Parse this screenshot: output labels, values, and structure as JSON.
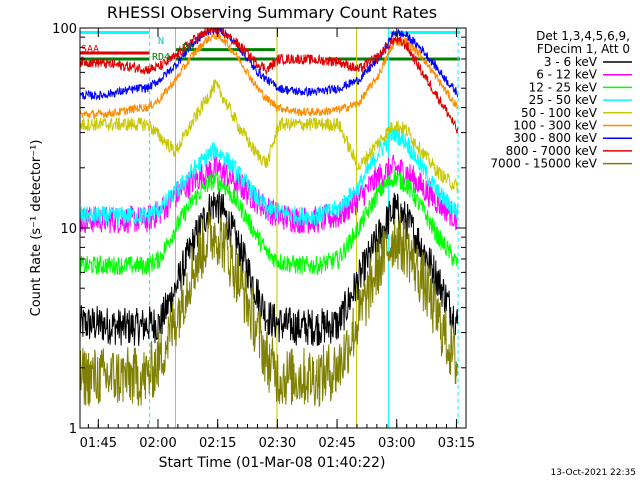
{
  "chart_data": {
    "type": "line",
    "title": "RHESSI Observing Summary Count Rates",
    "xlabel": "Start Time (01-Mar-08 01:40:22)",
    "ylabel": "Count Rate (s⁻¹ detector⁻¹)",
    "y_scale": "log",
    "ylim": [
      1,
      100
    ],
    "y_ticks": [
      {
        "value": 1,
        "label": "1"
      },
      {
        "value": 10,
        "label": "10"
      },
      {
        "value": 100,
        "label": "100"
      }
    ],
    "x_unit": "minutes after 01:40:22",
    "xlim": [
      0,
      97
    ],
    "x_ticks": [
      {
        "value": 4.6,
        "label": "01:45"
      },
      {
        "value": 19.6,
        "label": "02:00"
      },
      {
        "value": 34.6,
        "label": "02:15"
      },
      {
        "value": 49.6,
        "label": "02:30"
      },
      {
        "value": 64.6,
        "label": "02:45"
      },
      {
        "value": 79.6,
        "label": "03:00"
      },
      {
        "value": 94.6,
        "label": "03:15"
      }
    ],
    "legend_header": [
      "Det 1,3,4,5,6,9,",
      "FDecim 1, Att 0"
    ],
    "legend_placement": "right",
    "timestamp": "13-Oct-2021 22:35",
    "annotations": [
      {
        "text": "N",
        "color": "#00c8c8"
      },
      {
        "text": "RD",
        "color": "#008000"
      },
      {
        "text": "SAA",
        "color": "#e00000"
      },
      {
        "text": "RD4",
        "color": "#008000"
      }
    ],
    "flags": [
      {
        "name": "N",
        "color": "#00ffff",
        "y": 95,
        "segments": [
          [
            0,
            17.5
          ],
          [
            78,
            95.5
          ]
        ]
      },
      {
        "name": "RD",
        "color": "#008000",
        "y": 78,
        "segments": [
          [
            24,
            49
          ]
        ]
      },
      {
        "name": "SAA",
        "color": "#e00000",
        "y": 75,
        "segments": [
          [
            0,
            17.5
          ]
        ]
      },
      {
        "name": "RD4",
        "color": "#008000",
        "y": 70,
        "segments": [
          [
            0,
            17.5
          ],
          [
            24,
            49
          ],
          [
            62,
            95.5
          ]
        ]
      }
    ],
    "gap_lines": [
      {
        "x": 0,
        "color": "#00ffff",
        "style": "solid"
      },
      {
        "x": 17.5,
        "color": "#00ffff",
        "style": "dashed"
      },
      {
        "x": 24,
        "color": "#c8c800",
        "style": "solid"
      },
      {
        "x": 49.5,
        "color": "#c8c800",
        "style": "solid"
      },
      {
        "x": 69.5,
        "color": "#c8c800",
        "style": "solid"
      },
      {
        "x": 77.5,
        "color": "#00ffff",
        "style": "solid"
      },
      {
        "x": 95,
        "color": "#00ffff",
        "style": "dashed"
      }
    ],
    "series": [
      {
        "name": "3 - 6 keV",
        "color": "#000000",
        "values": [
          [
            0,
            3.3
          ],
          [
            5,
            3.3
          ],
          [
            10,
            3.2
          ],
          [
            15,
            3.2
          ],
          [
            17,
            3.3
          ],
          [
            20,
            3.3
          ],
          [
            24,
            5
          ],
          [
            28,
            8
          ],
          [
            32,
            12
          ],
          [
            34,
            13.5
          ],
          [
            36,
            12
          ],
          [
            40,
            8
          ],
          [
            44,
            5
          ],
          [
            47,
            3.6
          ],
          [
            50,
            3.3
          ],
          [
            55,
            3.2
          ],
          [
            60,
            3.2
          ],
          [
            65,
            3.3
          ],
          [
            70,
            5.5
          ],
          [
            75,
            9
          ],
          [
            79,
            12.5
          ],
          [
            82,
            11
          ],
          [
            86,
            8
          ],
          [
            90,
            5.5
          ],
          [
            93,
            4
          ],
          [
            95,
            3.3
          ]
        ]
      },
      {
        "name": "6 - 12 keV",
        "color": "#ff00ff",
        "values": [
          [
            0,
            11
          ],
          [
            5,
            11
          ],
          [
            10,
            11
          ],
          [
            15,
            11
          ],
          [
            17,
            11
          ],
          [
            20,
            12
          ],
          [
            24,
            14.5
          ],
          [
            28,
            17
          ],
          [
            32,
            19
          ],
          [
            34,
            20
          ],
          [
            36,
            19
          ],
          [
            40,
            16.5
          ],
          [
            44,
            14
          ],
          [
            47,
            12.5
          ],
          [
            50,
            11.5
          ],
          [
            55,
            11
          ],
          [
            60,
            11
          ],
          [
            65,
            11.5
          ],
          [
            70,
            14
          ],
          [
            75,
            18
          ],
          [
            79,
            20
          ],
          [
            82,
            19
          ],
          [
            86,
            16
          ],
          [
            90,
            13.5
          ],
          [
            93,
            12
          ],
          [
            95,
            11
          ]
        ]
      },
      {
        "name": "12 - 25 keV",
        "color": "#00ff00",
        "values": [
          [
            0,
            6.5
          ],
          [
            5,
            6.5
          ],
          [
            10,
            6.5
          ],
          [
            15,
            6.5
          ],
          [
            17,
            6.5
          ],
          [
            20,
            7
          ],
          [
            24,
            10
          ],
          [
            28,
            13.5
          ],
          [
            32,
            16.5
          ],
          [
            34,
            17.5
          ],
          [
            36,
            16.5
          ],
          [
            40,
            13
          ],
          [
            44,
            9.5
          ],
          [
            47,
            7.5
          ],
          [
            50,
            6.8
          ],
          [
            55,
            6.5
          ],
          [
            60,
            6.5
          ],
          [
            65,
            7
          ],
          [
            70,
            10
          ],
          [
            75,
            15
          ],
          [
            79,
            18
          ],
          [
            82,
            16.5
          ],
          [
            86,
            12.5
          ],
          [
            90,
            9
          ],
          [
            93,
            7.5
          ],
          [
            95,
            6.5
          ]
        ]
      },
      {
        "name": "25 - 50 keV",
        "color": "#00ffff",
        "values": [
          [
            0,
            11.5
          ],
          [
            5,
            11.5
          ],
          [
            10,
            11.5
          ],
          [
            15,
            11.5
          ],
          [
            17,
            11.5
          ],
          [
            20,
            12.5
          ],
          [
            24,
            15
          ],
          [
            28,
            19
          ],
          [
            32,
            23
          ],
          [
            34,
            24.5
          ],
          [
            36,
            23
          ],
          [
            40,
            18.5
          ],
          [
            44,
            14.5
          ],
          [
            47,
            12.5
          ],
          [
            50,
            12
          ],
          [
            55,
            11.5
          ],
          [
            60,
            11.5
          ],
          [
            65,
            12.5
          ],
          [
            70,
            16
          ],
          [
            75,
            24
          ],
          [
            79,
            30
          ],
          [
            82,
            27
          ],
          [
            86,
            20
          ],
          [
            90,
            15
          ],
          [
            93,
            13
          ],
          [
            95,
            12
          ]
        ]
      },
      {
        "name": "50 - 100 keV",
        "color": "#c8c800",
        "values": [
          [
            0,
            33
          ],
          [
            5,
            33
          ],
          [
            10,
            33
          ],
          [
            15,
            33
          ],
          [
            17,
            33
          ],
          [
            24,
            24
          ],
          [
            28,
            33
          ],
          [
            32,
            45
          ],
          [
            34,
            52
          ],
          [
            36,
            45
          ],
          [
            40,
            32
          ],
          [
            44,
            24
          ],
          [
            47,
            21
          ],
          [
            50,
            33
          ],
          [
            55,
            33
          ],
          [
            60,
            33
          ],
          [
            65,
            33
          ],
          [
            70,
            20
          ],
          [
            75,
            27
          ],
          [
            79,
            33
          ],
          [
            82,
            31
          ],
          [
            86,
            24
          ],
          [
            90,
            19
          ],
          [
            93,
            17
          ],
          [
            95,
            16
          ]
        ]
      },
      {
        "name": "100 - 300 keV",
        "color": "#ff8c00",
        "values": [
          [
            0,
            37
          ],
          [
            5,
            37
          ],
          [
            10,
            38
          ],
          [
            15,
            40
          ],
          [
            17,
            40
          ],
          [
            20,
            44
          ],
          [
            24,
            55
          ],
          [
            28,
            72
          ],
          [
            32,
            88
          ],
          [
            34,
            92
          ],
          [
            36,
            88
          ],
          [
            40,
            70
          ],
          [
            44,
            52
          ],
          [
            47,
            44
          ],
          [
            50,
            40
          ],
          [
            55,
            38
          ],
          [
            60,
            38
          ],
          [
            65,
            39
          ],
          [
            70,
            42
          ],
          [
            75,
            58
          ],
          [
            79,
            85
          ],
          [
            82,
            86
          ],
          [
            86,
            72
          ],
          [
            90,
            55
          ],
          [
            93,
            45
          ],
          [
            95,
            40
          ]
        ]
      },
      {
        "name": "300 - 800 keV",
        "color": "#0000ff",
        "values": [
          [
            0,
            46
          ],
          [
            5,
            46
          ],
          [
            10,
            48
          ],
          [
            15,
            50
          ],
          [
            17,
            50
          ],
          [
            20,
            55
          ],
          [
            24,
            65
          ],
          [
            28,
            82
          ],
          [
            32,
            96
          ],
          [
            34,
            99
          ],
          [
            36,
            96
          ],
          [
            40,
            80
          ],
          [
            44,
            62
          ],
          [
            47,
            55
          ],
          [
            50,
            50
          ],
          [
            55,
            48
          ],
          [
            60,
            48
          ],
          [
            65,
            50
          ],
          [
            70,
            55
          ],
          [
            75,
            70
          ],
          [
            79,
            95
          ],
          [
            82,
            92
          ],
          [
            86,
            78
          ],
          [
            90,
            62
          ],
          [
            93,
            52
          ],
          [
            95,
            47
          ]
        ]
      },
      {
        "name": "800 - 7000 keV",
        "color": "#e00000",
        "values": [
          [
            0,
            68
          ],
          [
            5,
            67
          ],
          [
            10,
            65
          ],
          [
            15,
            63
          ],
          [
            17,
            62
          ],
          [
            20,
            64
          ],
          [
            24,
            72
          ],
          [
            28,
            86
          ],
          [
            32,
            96
          ],
          [
            34,
            99
          ],
          [
            36,
            95
          ],
          [
            40,
            82
          ],
          [
            44,
            68
          ],
          [
            47,
            62
          ],
          [
            50,
            70
          ],
          [
            55,
            70
          ],
          [
            60,
            69
          ],
          [
            65,
            68
          ],
          [
            70,
            62
          ],
          [
            75,
            72
          ],
          [
            79,
            88
          ],
          [
            82,
            82
          ],
          [
            86,
            60
          ],
          [
            90,
            45
          ],
          [
            93,
            36
          ],
          [
            95,
            30
          ]
        ]
      },
      {
        "name": "7000 - 15000 keV",
        "color": "#808000",
        "values": [
          [
            0,
            1.8
          ],
          [
            5,
            1.8
          ],
          [
            10,
            1.8
          ],
          [
            15,
            1.8
          ],
          [
            17,
            1.8
          ],
          [
            20,
            2.2
          ],
          [
            24,
            3.5
          ],
          [
            28,
            6
          ],
          [
            32,
            8.8
          ],
          [
            34,
            9.5
          ],
          [
            36,
            8.5
          ],
          [
            40,
            5.5
          ],
          [
            44,
            3.3
          ],
          [
            47,
            2.2
          ],
          [
            50,
            1.8
          ],
          [
            55,
            1.8
          ],
          [
            60,
            1.8
          ],
          [
            65,
            2
          ],
          [
            70,
            3.5
          ],
          [
            75,
            6.5
          ],
          [
            79,
            9
          ],
          [
            82,
            8
          ],
          [
            86,
            5.5
          ],
          [
            90,
            3.5
          ],
          [
            93,
            2.5
          ],
          [
            95,
            2
          ]
        ]
      }
    ]
  }
}
